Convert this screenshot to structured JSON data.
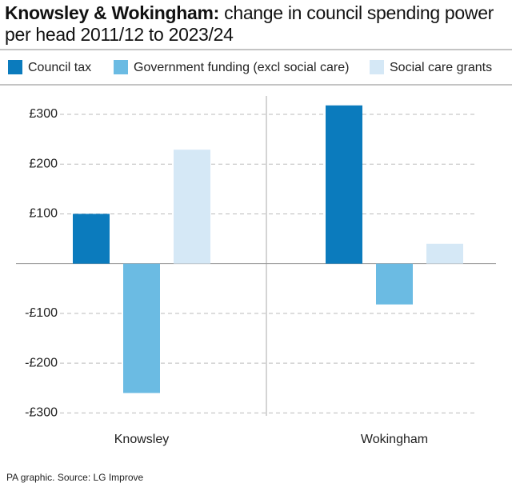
{
  "chart_data": {
    "type": "bar",
    "title": "Knowsley & Wokingham:",
    "subtitle": "change in council spending power per head 2011/12 to 2023/24",
    "categories": [
      "Knowsley",
      "Wokingham"
    ],
    "series": [
      {
        "name": "Council tax",
        "color": "#0b7bbd",
        "values": [
          100,
          318
        ]
      },
      {
        "name": "Government funding (excl social care)",
        "color": "#6bbbe3",
        "values": [
          -260,
          -82
        ]
      },
      {
        "name": "Social care grants",
        "color": "#d5e8f6",
        "values": [
          229,
          40
        ]
      }
    ],
    "ylim": [
      -330,
      345
    ],
    "yticks": [
      {
        "value": -300,
        "label": "-£300"
      },
      {
        "value": -200,
        "label": "-£200"
      },
      {
        "value": -100,
        "label": "-£100"
      },
      {
        "value": 100,
        "label": "£100"
      },
      {
        "value": 200,
        "label": "£200"
      },
      {
        "value": 300,
        "label": "£300"
      }
    ],
    "grid": true,
    "source": "PA graphic. Source: LG Improve"
  }
}
